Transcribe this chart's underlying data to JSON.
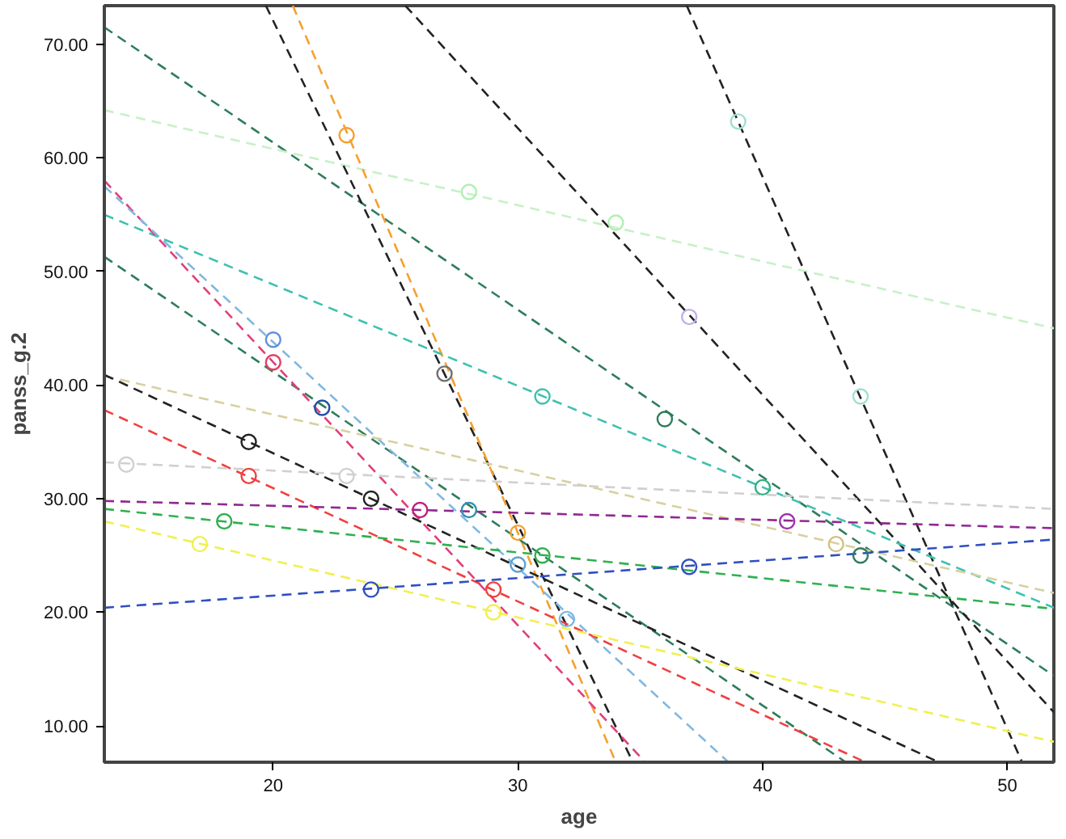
{
  "chart_data": {
    "type": "line",
    "xlabel": "age",
    "ylabel": "panss_g.2",
    "xlim": [
      13.1,
      51.9
    ],
    "ylim": [
      6.8,
      73.4
    ],
    "xticks": [
      20,
      30,
      40,
      50
    ],
    "yticks": [
      {
        "value": 10,
        "label": "10.00"
      },
      {
        "value": 20,
        "label": "20.00"
      },
      {
        "value": 30,
        "label": "30.00"
      },
      {
        "value": 40,
        "label": "40.00"
      },
      {
        "value": 50,
        "label": "50.00"
      },
      {
        "value": 60,
        "label": "60.00"
      },
      {
        "value": 70,
        "label": "70.00"
      }
    ],
    "grid": false,
    "line_style": "dashed",
    "series": [
      {
        "color": "#2e7d5b",
        "x": [
          13.1,
          51.9
        ],
        "values": [
          71.5,
          14.4
        ]
      },
      {
        "color": "#c8f0c8",
        "x": [
          13.1,
          51.9
        ],
        "values": [
          64.2,
          45.0
        ]
      },
      {
        "color": "#222222",
        "x": [
          19.7,
          34.7
        ],
        "values": [
          73.4,
          6.8
        ]
      },
      {
        "color": "#f5a030",
        "x": [
          20.8,
          34.0
        ],
        "values": [
          73.4,
          6.8
        ]
      },
      {
        "color": "#222222",
        "x": [
          25.4,
          51.9
        ],
        "values": [
          73.4,
          11.2
        ]
      },
      {
        "color": "#222222",
        "x": [
          36.9,
          50.6
        ],
        "values": [
          73.4,
          6.8
        ]
      },
      {
        "color": "#40c0b0",
        "x": [
          13.1,
          51.9
        ],
        "values": [
          55.0,
          20.4
        ]
      },
      {
        "color": "#2e7d5b",
        "x": [
          13.1,
          43.4
        ],
        "values": [
          51.3,
          6.8
        ]
      },
      {
        "color": "#e0407a",
        "x": [
          13.1,
          35.2
        ],
        "values": [
          58.0,
          6.8
        ]
      },
      {
        "color": "#80b8e0",
        "x": [
          13.1,
          38.6
        ],
        "values": [
          57.5,
          6.8
        ]
      },
      {
        "color": "#d8d0a0",
        "x": [
          13.1,
          51.9
        ],
        "values": [
          40.8,
          21.7
        ]
      },
      {
        "color": "#222222",
        "x": [
          13.1,
          47.2
        ],
        "values": [
          40.9,
          6.8
        ]
      },
      {
        "color": "#f04040",
        "x": [
          13.1,
          44.2
        ],
        "values": [
          37.8,
          6.8
        ]
      },
      {
        "color": "#d0d0d0",
        "x": [
          13.1,
          51.9
        ],
        "values": [
          33.2,
          29.1
        ]
      },
      {
        "color": "#902890",
        "x": [
          13.1,
          51.9
        ],
        "values": [
          29.8,
          27.4
        ]
      },
      {
        "color": "#30b050",
        "x": [
          13.1,
          51.9
        ],
        "values": [
          29.1,
          20.3
        ]
      },
      {
        "color": "#f0f050",
        "x": [
          13.1,
          51.9
        ],
        "values": [
          28.0,
          8.6
        ]
      },
      {
        "color": "#3050c0",
        "x": [
          13.1,
          51.9
        ],
        "values": [
          20.4,
          26.4
        ]
      },
      {
        "type": "scatter",
        "marker": "circle",
        "x": [
          23,
          30,
          28,
          34,
          39,
          44,
          27,
          37,
          36,
          44,
          31,
          40,
          20,
          22,
          20,
          26,
          28,
          30,
          32,
          19,
          24,
          19,
          29,
          14,
          23,
          41,
          18,
          31,
          17,
          29,
          24,
          37,
          43
        ],
        "values": [
          62,
          27,
          57,
          54.3,
          63.2,
          39,
          41,
          46,
          37,
          25,
          39,
          31,
          44,
          38,
          42,
          29,
          29,
          24.2,
          19.4,
          35,
          30,
          32,
          22,
          33,
          32,
          28,
          28,
          25,
          26,
          20,
          22,
          24,
          26
        ],
        "colors": [
          "#f5a030",
          "#f5a030",
          "#b0f0b0",
          "#b0f0b0",
          "#a0e0d0",
          "#a0e0d0",
          "#707070",
          "#c0b0e8",
          "#2e7d5b",
          "#2e7d5b",
          "#40c0b0",
          "#30b080",
          "#6090e0",
          "#2050a0",
          "#e04060",
          "#c02080",
          "#3090b0",
          "#60a0d0",
          "#80b8e0",
          "#222222",
          "#222222",
          "#f04040",
          "#f04040",
          "#d0d0d0",
          "#d0d0d0",
          "#a030b0",
          "#30b050",
          "#30b050",
          "#f0f050",
          "#f0f050",
          "#3050c0",
          "#3050c0",
          "#d0c080"
        ]
      }
    ]
  }
}
